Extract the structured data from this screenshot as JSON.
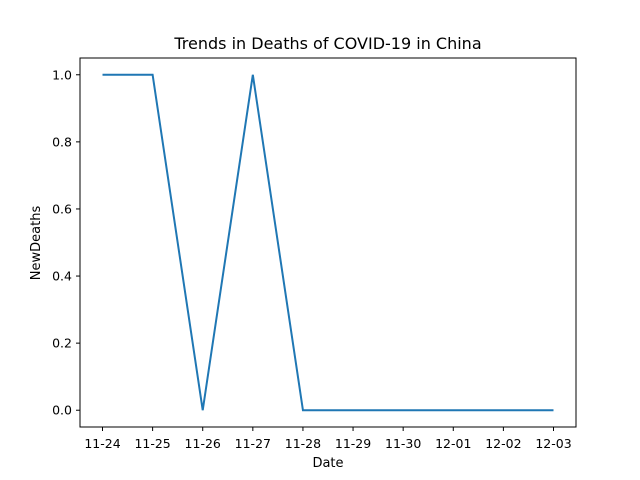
{
  "chart_data": {
    "type": "line",
    "title": "Trends in Deaths of COVID-19 in China",
    "xlabel": "Date",
    "ylabel": "NewDeaths",
    "categories": [
      "11-24",
      "11-25",
      "11-26",
      "11-27",
      "11-28",
      "11-29",
      "11-30",
      "12-01",
      "12-02",
      "12-03"
    ],
    "series": [
      {
        "values": [
          1,
          1,
          0,
          1,
          0,
          0,
          0,
          0,
          0,
          0
        ]
      }
    ],
    "yticks": [
      "0.0",
      "0.2",
      "0.4",
      "0.6",
      "0.8",
      "1.0"
    ],
    "ylim": [
      -0.05,
      1.05
    ],
    "grid": false,
    "colors": {
      "line": "#1f77b4"
    }
  }
}
